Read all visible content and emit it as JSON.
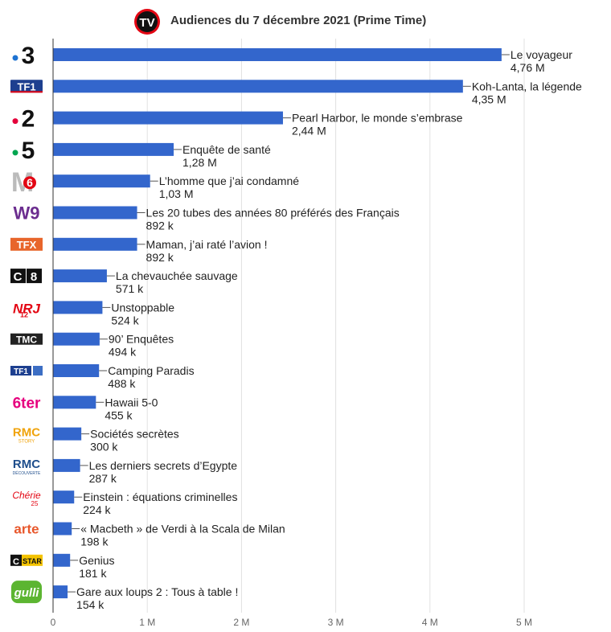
{
  "header": {
    "logo_text": "TV",
    "title": "Audiences du 7 décembre 2021 (Prime Time)"
  },
  "colors": {
    "bar": "#3366cc",
    "grid": "#e0e0e0",
    "axis": "#333333",
    "logo_red": "#e30613"
  },
  "chart_data": {
    "type": "bar",
    "orientation": "horizontal",
    "title": "Audiences du 7 décembre 2021 (Prime Time)",
    "xlim": [
      0,
      5.3
    ],
    "xticks": [
      0,
      1,
      2,
      3,
      4,
      5
    ],
    "xtick_labels": [
      "0",
      "1 M",
      "2 M",
      "3 M",
      "4 M",
      "5 M"
    ],
    "grid": true,
    "rows": [
      {
        "channel": "France 3",
        "logo_icon": "france3-logo-icon",
        "program": "Le voyageur",
        "value": 4.76,
        "value_label": "4,76 M"
      },
      {
        "channel": "TF1",
        "logo_icon": "tf1-logo-icon",
        "program": "Koh-Lanta, la légende",
        "value": 4.35,
        "value_label": "4,35 M"
      },
      {
        "channel": "France 2",
        "logo_icon": "france2-logo-icon",
        "program": "Pearl Harbor, le monde s’embrase",
        "value": 2.44,
        "value_label": "2,44 M"
      },
      {
        "channel": "France 5",
        "logo_icon": "france5-logo-icon",
        "program": "Enquête de santé",
        "value": 1.28,
        "value_label": "1,28 M"
      },
      {
        "channel": "M6",
        "logo_icon": "m6-logo-icon",
        "program": "L’homme que j’ai condamné",
        "value": 1.03,
        "value_label": "1,03 M"
      },
      {
        "channel": "W9",
        "logo_icon": "w9-logo-icon",
        "program": "Les 20 tubes des années 80 préférés des Français",
        "value": 0.892,
        "value_label": "892 k"
      },
      {
        "channel": "TFX",
        "logo_icon": "tfx-logo-icon",
        "program": "Maman, j’ai raté l’avion !",
        "value": 0.892,
        "value_label": "892 k"
      },
      {
        "channel": "C8",
        "logo_icon": "c8-logo-icon",
        "program": "La chevauchée sauvage",
        "value": 0.571,
        "value_label": "571 k"
      },
      {
        "channel": "NRJ 12",
        "logo_icon": "nrj12-logo-icon",
        "program": "Unstoppable",
        "value": 0.524,
        "value_label": "524 k"
      },
      {
        "channel": "TMC",
        "logo_icon": "tmc-logo-icon",
        "program": "90’ Enquêtes",
        "value": 0.494,
        "value_label": "494 k"
      },
      {
        "channel": "TF1 Séries Films",
        "logo_icon": "tf1-series-films-logo-icon",
        "program": "Camping Paradis",
        "value": 0.488,
        "value_label": "488 k"
      },
      {
        "channel": "6ter",
        "logo_icon": "6ter-logo-icon",
        "program": "Hawaii 5-0",
        "value": 0.455,
        "value_label": "455 k"
      },
      {
        "channel": "RMC Story",
        "logo_icon": "rmc-story-logo-icon",
        "program": "Sociétés secrètes",
        "value": 0.3,
        "value_label": "300 k"
      },
      {
        "channel": "RMC Découverte",
        "logo_icon": "rmc-decouverte-logo-icon",
        "program": "Les derniers secrets d’Egypte",
        "value": 0.287,
        "value_label": "287 k"
      },
      {
        "channel": "Chérie 25",
        "logo_icon": "cherie25-logo-icon",
        "program": "Einstein : équations criminelles",
        "value": 0.224,
        "value_label": "224 k"
      },
      {
        "channel": "Arte",
        "logo_icon": "arte-logo-icon",
        "program": "« Macbeth » de Verdi à la Scala de Milan",
        "value": 0.198,
        "value_label": "198 k"
      },
      {
        "channel": "CStar",
        "logo_icon": "cstar-logo-icon",
        "program": "Genius",
        "value": 0.181,
        "value_label": "181 k"
      },
      {
        "channel": "Gulli",
        "logo_icon": "gulli-logo-icon",
        "program": "Gare aux loups 2 : Tous à table !",
        "value": 0.154,
        "value_label": "154 k"
      }
    ]
  }
}
